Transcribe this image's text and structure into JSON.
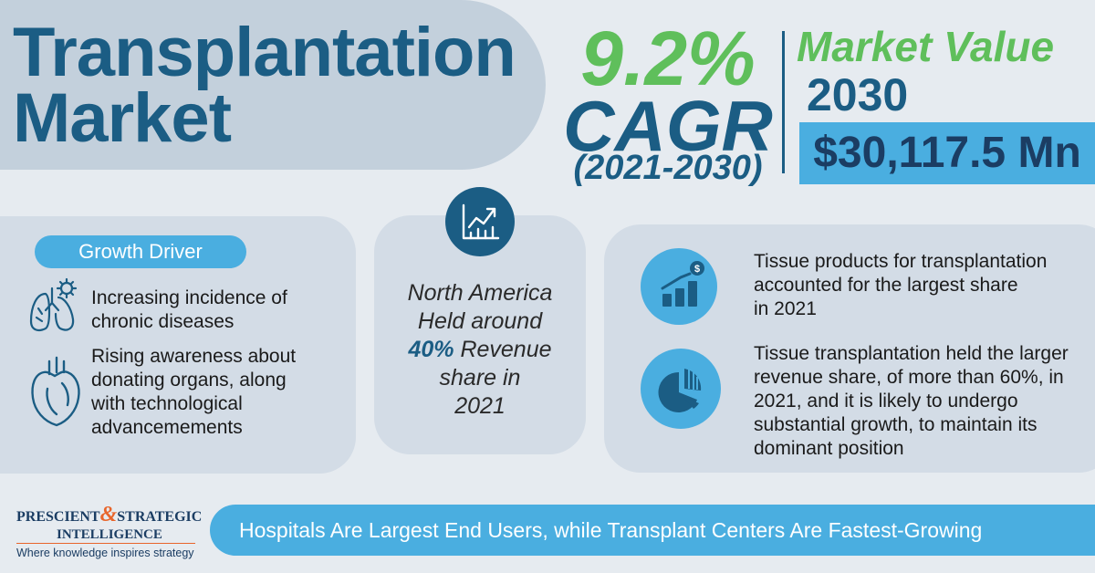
{
  "title": {
    "line1": "Transplantation",
    "line2": "Market"
  },
  "cagr": {
    "value": "9.2%",
    "label": "CAGR",
    "period": "(2021-2030)"
  },
  "market_value": {
    "title": "Market Value",
    "year": "2030",
    "amount": "$30,117.5 Mn"
  },
  "growth_driver": {
    "label": "Growth Driver",
    "items": [
      {
        "icon": "lungs-icon",
        "text_line1": "Increasing incidence of",
        "text_line2": "chronic diseases"
      },
      {
        "icon": "heart-icon",
        "text_line1": "Rising awareness about",
        "text_line2": "donating organs, along",
        "text_line3": "with technological",
        "text_line4": "advancemements"
      }
    ]
  },
  "region": {
    "icon": "growth-chart-icon",
    "line1": "North America",
    "line2": "Held around",
    "highlight": "40%",
    "line3_rest": " Revenue",
    "line4": "share in",
    "line5": "2021"
  },
  "insights": [
    {
      "icon": "revenue-bars-icon",
      "line1": "Tissue products for transplantation",
      "line2": "accounted for the largest share",
      "line3": "in 2021"
    },
    {
      "icon": "pie-chart-icon",
      "line1": "Tissue transplantation held the larger",
      "line2": "revenue share, of more than 60%, in",
      "line3": "2021, and it is likely to undergo",
      "line4": "substantial growth, to maintain its",
      "line5": "dominant position"
    }
  ],
  "footer": {
    "text": "Hospitals Are Largest End Users, while Transplant Centers Are Fastest-Growing"
  },
  "logo": {
    "part1": "PRESCIENT",
    "amp": "&",
    "part2": "STRATEGIC",
    "part3": "INTELLIGENCE",
    "tagline": "Where knowledge inspires strategy"
  },
  "colors": {
    "dark_blue": "#1b5d84",
    "green": "#5fbf5b",
    "light_blue": "#4aaee0",
    "panel": "#d3dce6",
    "background": "#e6ebf0",
    "accent_orange": "#e8652b"
  }
}
